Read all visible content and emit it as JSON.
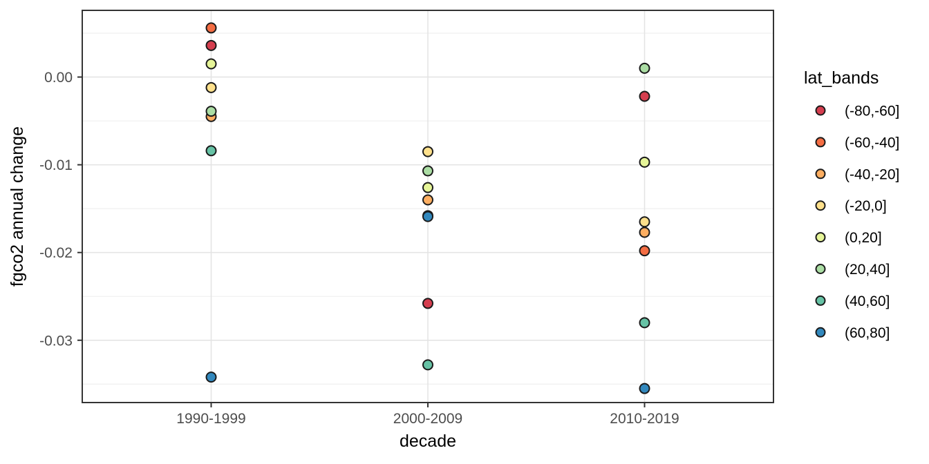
{
  "chart_data": {
    "type": "scatter",
    "title": "",
    "xlabel": "decade",
    "ylabel": "fgco2 annual change",
    "categories": [
      "1990-1999",
      "2000-2009",
      "2010-2019"
    ],
    "legend_title": "lat_bands",
    "legend_position": "right",
    "ylim": [
      -0.0371,
      0.0076
    ],
    "y_ticks": [
      {
        "value": 0.0,
        "label": "0.00"
      },
      {
        "value": -0.01,
        "label": "-0.01"
      },
      {
        "value": -0.02,
        "label": "-0.02"
      },
      {
        "value": -0.03,
        "label": "-0.03"
      }
    ],
    "y_minor_ticks": [
      0.005,
      -0.005,
      -0.015,
      -0.025,
      -0.035
    ],
    "grid": true,
    "series": [
      {
        "name": "(-80,-60]",
        "color": "#D53E4F",
        "values": [
          0.0036,
          -0.0258,
          -0.0022
        ]
      },
      {
        "name": "(-60,-40]",
        "color": "#F46D43",
        "values": [
          0.0056,
          -0.0158,
          -0.0198
        ]
      },
      {
        "name": "(-40,-20]",
        "color": "#FDAE61",
        "values": [
          -0.0045,
          -0.014,
          -0.0177
        ]
      },
      {
        "name": "(-20,0]",
        "color": "#FEE08B",
        "values": [
          -0.0012,
          -0.0085,
          -0.0165
        ]
      },
      {
        "name": "(0,20]",
        "color": "#E6F598",
        "values": [
          0.0015,
          -0.0126,
          -0.0097
        ]
      },
      {
        "name": "(20,40]",
        "color": "#ABDDA4",
        "values": [
          -0.0039,
          -0.0107,
          0.001
        ]
      },
      {
        "name": "(40,60]",
        "color": "#66C2A5",
        "values": [
          -0.0084,
          -0.0328,
          -0.028
        ]
      },
      {
        "name": "(60,80]",
        "color": "#3288BD",
        "values": [
          -0.0342,
          -0.0159,
          -0.0355
        ]
      }
    ]
  },
  "palette": {
    "panel_border": "#333333",
    "grid_major": "#E4E4E4",
    "grid_minor": "#F1F1F1",
    "tick_mark": "#333333",
    "tick_label": "#4D4D4D",
    "axis_title": "#000000",
    "legend_text": "#000000",
    "point_stroke": "#1A1A1A",
    "background": "#FFFFFF"
  }
}
